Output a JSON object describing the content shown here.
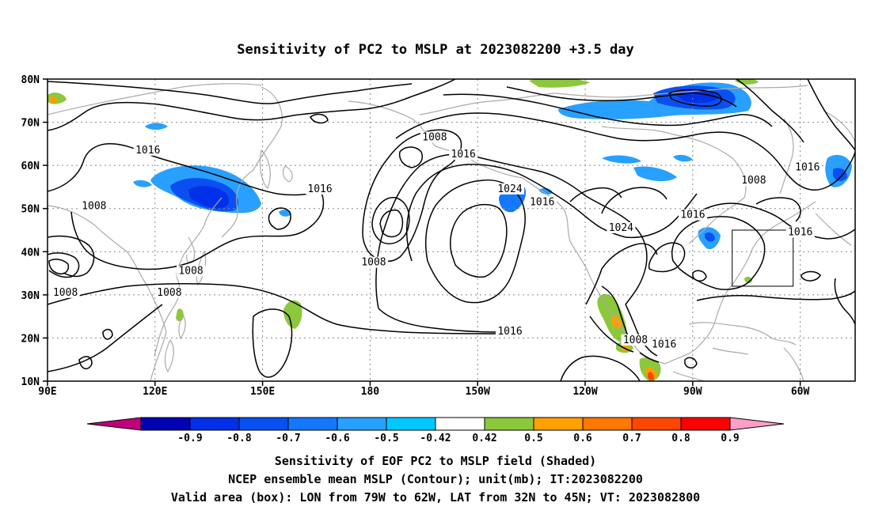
{
  "title": "Sensitivity of PC2 to MSLP at 2023082200 +3.5 day",
  "lat_labels": [
    "80N",
    "70N",
    "60N",
    "50N",
    "40N",
    "30N",
    "20N",
    "10N"
  ],
  "lon_labels": [
    "90E",
    "120E",
    "150E",
    "180",
    "150W",
    "120W",
    "90W",
    "60W"
  ],
  "colorbar": {
    "labels": [
      "-0.9",
      "-0.8",
      "-0.7",
      "-0.6",
      "-0.5",
      "-0.42",
      "0.42",
      "0.5",
      "0.6",
      "0.7",
      "0.8",
      "0.9"
    ],
    "colors": [
      "#c0007a",
      "#0000b4",
      "#0030e8",
      "#0a50f0",
      "#1478ff",
      "#28a0ff",
      "#00c8ff",
      "#ffffff",
      "#8cc83c",
      "#ffa000",
      "#ff7800",
      "#ff4600",
      "#ff0000",
      "#ff9ec8"
    ]
  },
  "contour_labels": [
    {
      "text": "1008",
      "lon": -162,
      "lat": 66
    },
    {
      "text": "1016",
      "lon": 118,
      "lat": 63
    },
    {
      "text": "1016",
      "lon": -154,
      "lat": 62
    },
    {
      "text": "1016",
      "lon": 166,
      "lat": 54
    },
    {
      "text": "1024",
      "lon": -141,
      "lat": 54
    },
    {
      "text": "1016",
      "lon": -132,
      "lat": 51
    },
    {
      "text": "1008",
      "lon": 103,
      "lat": 50
    },
    {
      "text": "1024",
      "lon": -110,
      "lat": 45
    },
    {
      "text": "1016",
      "lon": -90,
      "lat": 48
    },
    {
      "text": "1008",
      "lon": -73,
      "lat": 56
    },
    {
      "text": "1016",
      "lon": -58,
      "lat": 59
    },
    {
      "text": "1016",
      "lon": -60,
      "lat": 44
    },
    {
      "text": "1008",
      "lon": 181,
      "lat": 37
    },
    {
      "text": "1008",
      "lon": 130,
      "lat": 35
    },
    {
      "text": "1008",
      "lon": 124,
      "lat": 30
    },
    {
      "text": "1008",
      "lon": 95,
      "lat": 30
    },
    {
      "text": "1016",
      "lon": -141,
      "lat": 21
    },
    {
      "text": "1008",
      "lon": -106,
      "lat": 19
    },
    {
      "text": "1016",
      "lon": -98,
      "lat": 18
    }
  ],
  "valid_box": {
    "lon_from": -79,
    "lon_to": -62,
    "lat_from": 32,
    "lat_to": 45
  },
  "captions": [
    "Sensitivity of EOF PC2 to MSLP field (Shaded)",
    "NCEP ensemble mean MSLP (Contour); unit(mb); IT:2023082200",
    "Valid area (box): LON from 79W to 62W, LAT from 32N to 45N; VT: 2023082800"
  ]
}
